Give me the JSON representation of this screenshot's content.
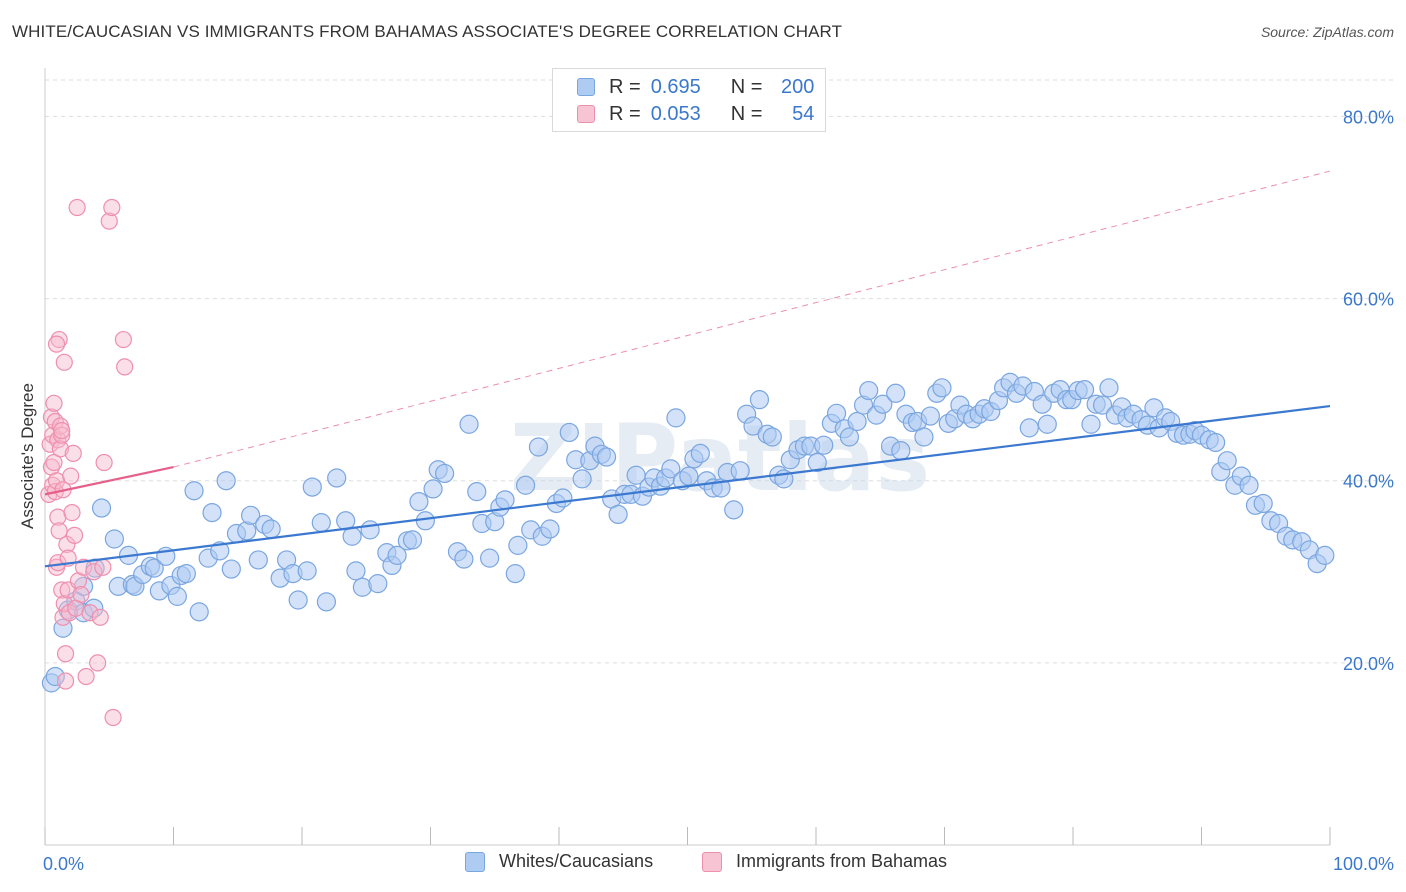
{
  "title": "WHITE/CAUCASIAN VS IMMIGRANTS FROM BAHAMAS ASSOCIATE'S DEGREE CORRELATION CHART",
  "source": "Source: ZipAtlas.com",
  "watermark": "ZIPatlas",
  "legend": {
    "rows": [
      {
        "r_label": "R =",
        "r_value": "0.695",
        "n_label": "N =",
        "n_value": "200"
      },
      {
        "r_label": "R =",
        "r_value": "0.053",
        "n_label": "N =",
        "n_value": "54"
      }
    ]
  },
  "bottom_legend": [
    {
      "label": "Whites/Caucasians"
    },
    {
      "label": "Immigrants from Bahamas"
    }
  ],
  "colors": {
    "blue_fill": "#aecbf2",
    "blue_stroke": "#7aa6e0",
    "blue_line": "#3b78d0",
    "pink_fill": "#f7b7cb",
    "pink_stroke": "#ee8fae",
    "pink_line": "#e5608a",
    "tick_label": "#3b78cc",
    "grid": "#dddddd"
  },
  "chart_data": {
    "type": "scatter",
    "title": "WHITE/CAUCASIAN VS IMMIGRANTS FROM BAHAMAS ASSOCIATE'S DEGREE CORRELATION CHART",
    "xlabel": "",
    "ylabel": "Associate's Degree",
    "xlim": [
      0,
      100
    ],
    "ylim": [
      0,
      84
    ],
    "x_tick_labels": [
      "0.0%",
      "100.0%"
    ],
    "y_ticks": [
      20,
      40,
      60,
      80
    ],
    "y_tick_labels": [
      "20.0%",
      "40.0%",
      "60.0%",
      "80.0%"
    ],
    "grid": true,
    "legend_position": "top-center",
    "series": [
      {
        "name": "Whites/Caucasians",
        "R": 0.695,
        "N": 200,
        "trend": {
          "x": [
            0,
            100
          ],
          "y": [
            30.6,
            48.2
          ],
          "style": "solid"
        },
        "points": [
          [
            0.5,
            17.8
          ],
          [
            0.8,
            18.5
          ],
          [
            1.4,
            23.8
          ],
          [
            1.8,
            25.8
          ],
          [
            2.4,
            26.8
          ],
          [
            3.0,
            25.5
          ],
          [
            3.0,
            28.4
          ],
          [
            3.8,
            26.0
          ],
          [
            3.9,
            30.4
          ],
          [
            4.4,
            37.0
          ],
          [
            5.4,
            33.6
          ],
          [
            5.7,
            28.4
          ],
          [
            6.5,
            31.8
          ],
          [
            6.8,
            28.6
          ],
          [
            7.0,
            28.4
          ],
          [
            7.6,
            29.7
          ],
          [
            8.2,
            30.6
          ],
          [
            8.5,
            30.4
          ],
          [
            8.9,
            27.9
          ],
          [
            9.4,
            31.7
          ],
          [
            9.8,
            28.5
          ],
          [
            10.3,
            27.3
          ],
          [
            10.6,
            29.6
          ],
          [
            11.0,
            29.8
          ],
          [
            11.6,
            38.9
          ],
          [
            12.0,
            25.6
          ],
          [
            12.7,
            31.5
          ],
          [
            13.0,
            36.5
          ],
          [
            13.6,
            32.3
          ],
          [
            14.1,
            40.0
          ],
          [
            14.5,
            30.3
          ],
          [
            14.9,
            34.2
          ],
          [
            15.7,
            34.5
          ],
          [
            16.0,
            36.2
          ],
          [
            16.6,
            31.3
          ],
          [
            17.1,
            35.2
          ],
          [
            17.6,
            34.7
          ],
          [
            18.3,
            29.3
          ],
          [
            18.8,
            31.3
          ],
          [
            19.3,
            29.8
          ],
          [
            19.7,
            26.9
          ],
          [
            20.4,
            30.1
          ],
          [
            20.8,
            39.3
          ],
          [
            21.5,
            35.4
          ],
          [
            21.9,
            26.7
          ],
          [
            22.7,
            40.3
          ],
          [
            23.4,
            35.6
          ],
          [
            23.9,
            33.9
          ],
          [
            24.2,
            30.1
          ],
          [
            24.7,
            28.3
          ],
          [
            25.3,
            34.6
          ],
          [
            25.9,
            28.7
          ],
          [
            26.6,
            32.1
          ],
          [
            27.0,
            30.7
          ],
          [
            27.4,
            31.8
          ],
          [
            28.2,
            33.4
          ],
          [
            28.6,
            33.5
          ],
          [
            29.1,
            37.7
          ],
          [
            29.6,
            35.6
          ],
          [
            30.2,
            39.1
          ],
          [
            30.6,
            41.2
          ],
          [
            31.1,
            40.8
          ],
          [
            32.1,
            32.2
          ],
          [
            32.6,
            31.4
          ],
          [
            33.0,
            46.2
          ],
          [
            33.6,
            38.8
          ],
          [
            34.0,
            35.3
          ],
          [
            34.6,
            31.5
          ],
          [
            35.0,
            35.5
          ],
          [
            35.4,
            37.1
          ],
          [
            35.8,
            37.9
          ],
          [
            36.6,
            29.8
          ],
          [
            36.8,
            32.9
          ],
          [
            37.4,
            39.5
          ],
          [
            37.8,
            34.6
          ],
          [
            38.4,
            43.7
          ],
          [
            38.7,
            33.9
          ],
          [
            39.3,
            34.7
          ],
          [
            39.8,
            37.5
          ],
          [
            40.3,
            38.1
          ],
          [
            40.8,
            45.3
          ],
          [
            41.3,
            42.3
          ],
          [
            41.8,
            40.2
          ],
          [
            42.4,
            42.2
          ],
          [
            42.8,
            43.8
          ],
          [
            43.3,
            42.9
          ],
          [
            43.7,
            42.6
          ],
          [
            44.1,
            38.0
          ],
          [
            44.6,
            36.3
          ],
          [
            45.1,
            38.5
          ],
          [
            45.6,
            38.5
          ],
          [
            46.0,
            40.6
          ],
          [
            46.5,
            38.3
          ],
          [
            47.0,
            39.3
          ],
          [
            47.4,
            40.3
          ],
          [
            47.9,
            39.4
          ],
          [
            48.3,
            40.3
          ],
          [
            48.7,
            41.3
          ],
          [
            49.1,
            46.9
          ],
          [
            49.6,
            40.0
          ],
          [
            50.1,
            40.5
          ],
          [
            50.5,
            42.4
          ],
          [
            51.0,
            43.0
          ],
          [
            51.5,
            40.0
          ],
          [
            52.0,
            39.2
          ],
          [
            52.6,
            39.2
          ],
          [
            53.1,
            40.9
          ],
          [
            53.6,
            36.8
          ],
          [
            54.1,
            41.1
          ],
          [
            54.6,
            47.3
          ],
          [
            55.1,
            46.0
          ],
          [
            55.6,
            48.9
          ],
          [
            56.2,
            45.1
          ],
          [
            56.6,
            44.8
          ],
          [
            57.1,
            40.6
          ],
          [
            57.5,
            40.2
          ],
          [
            58.0,
            42.3
          ],
          [
            58.6,
            43.4
          ],
          [
            59.1,
            43.8
          ],
          [
            59.6,
            43.8
          ],
          [
            60.1,
            42.0
          ],
          [
            60.6,
            43.9
          ],
          [
            61.2,
            46.3
          ],
          [
            61.6,
            47.4
          ],
          [
            62.2,
            45.7
          ],
          [
            62.6,
            44.8
          ],
          [
            63.2,
            46.5
          ],
          [
            63.7,
            48.3
          ],
          [
            64.1,
            49.9
          ],
          [
            64.7,
            47.2
          ],
          [
            65.2,
            48.4
          ],
          [
            65.8,
            43.8
          ],
          [
            66.2,
            49.6
          ],
          [
            66.6,
            43.3
          ],
          [
            67.0,
            47.3
          ],
          [
            67.5,
            46.4
          ],
          [
            67.9,
            46.5
          ],
          [
            68.4,
            44.8
          ],
          [
            68.9,
            47.1
          ],
          [
            69.4,
            49.6
          ],
          [
            69.8,
            50.2
          ],
          [
            70.3,
            46.3
          ],
          [
            70.8,
            46.8
          ],
          [
            71.2,
            48.3
          ],
          [
            71.7,
            47.3
          ],
          [
            72.2,
            46.8
          ],
          [
            72.7,
            47.3
          ],
          [
            73.1,
            47.9
          ],
          [
            73.6,
            47.6
          ],
          [
            74.2,
            48.8
          ],
          [
            74.6,
            50.2
          ],
          [
            75.1,
            50.8
          ],
          [
            75.6,
            49.6
          ],
          [
            76.1,
            50.4
          ],
          [
            76.6,
            45.8
          ],
          [
            77.0,
            49.8
          ],
          [
            77.6,
            48.4
          ],
          [
            78.0,
            46.2
          ],
          [
            78.5,
            49.6
          ],
          [
            79.0,
            50.0
          ],
          [
            79.5,
            48.9
          ],
          [
            79.9,
            48.9
          ],
          [
            80.4,
            49.9
          ],
          [
            80.9,
            50.0
          ],
          [
            81.4,
            46.2
          ],
          [
            81.8,
            48.4
          ],
          [
            82.3,
            48.3
          ],
          [
            82.8,
            50.2
          ],
          [
            83.3,
            47.2
          ],
          [
            83.8,
            48.1
          ],
          [
            84.2,
            46.9
          ],
          [
            84.7,
            47.3
          ],
          [
            85.3,
            46.7
          ],
          [
            85.8,
            46.1
          ],
          [
            86.3,
            48.0
          ],
          [
            86.7,
            45.8
          ],
          [
            87.2,
            46.9
          ],
          [
            87.6,
            46.5
          ],
          [
            88.1,
            45.2
          ],
          [
            88.6,
            45.0
          ],
          [
            89.1,
            45.1
          ],
          [
            89.5,
            45.5
          ],
          [
            90.0,
            45.0
          ],
          [
            90.6,
            44.5
          ],
          [
            91.1,
            44.2
          ],
          [
            91.5,
            41.0
          ],
          [
            92.0,
            42.2
          ],
          [
            92.6,
            39.5
          ],
          [
            93.1,
            40.5
          ],
          [
            93.7,
            39.5
          ],
          [
            94.2,
            37.3
          ],
          [
            94.8,
            37.5
          ],
          [
            95.4,
            35.6
          ],
          [
            96.0,
            35.3
          ],
          [
            96.6,
            33.9
          ],
          [
            97.1,
            33.5
          ],
          [
            97.8,
            33.3
          ],
          [
            98.4,
            32.4
          ],
          [
            99.0,
            30.9
          ],
          [
            99.6,
            31.8
          ]
        ]
      },
      {
        "name": "Immigrants from Bahamas",
        "R": 0.053,
        "N": 54,
        "trend": {
          "x": [
            0,
            10
          ],
          "y": [
            38.5,
            41.5
          ],
          "style": "solid"
        },
        "trend_extension": {
          "x": [
            10,
            100
          ],
          "y": [
            41.5,
            74
          ],
          "style": "dashed"
        },
        "points": [
          [
            0.3,
            38.5
          ],
          [
            0.4,
            44.0
          ],
          [
            0.5,
            47.0
          ],
          [
            0.5,
            41.5
          ],
          [
            0.6,
            39.5
          ],
          [
            0.6,
            45.0
          ],
          [
            0.7,
            42.0
          ],
          [
            0.7,
            48.5
          ],
          [
            0.8,
            46.5
          ],
          [
            0.8,
            38.8
          ],
          [
            0.9,
            30.5
          ],
          [
            0.9,
            40.0
          ],
          [
            1.0,
            36.0
          ],
          [
            1.0,
            44.5
          ],
          [
            1.0,
            31.0
          ],
          [
            1.1,
            55.5
          ],
          [
            1.1,
            34.5
          ],
          [
            1.2,
            46.0
          ],
          [
            1.2,
            43.5
          ],
          [
            1.3,
            28.0
          ],
          [
            1.3,
            45.0
          ],
          [
            1.4,
            39.0
          ],
          [
            1.4,
            25.0
          ],
          [
            1.5,
            26.5
          ],
          [
            1.5,
            53.0
          ],
          [
            1.6,
            21.0
          ],
          [
            1.6,
            18.0
          ],
          [
            1.7,
            33.0
          ],
          [
            1.8,
            28.0
          ],
          [
            1.8,
            31.5
          ],
          [
            1.9,
            25.5
          ],
          [
            2.0,
            40.5
          ],
          [
            2.1,
            36.5
          ],
          [
            2.2,
            43.0
          ],
          [
            2.3,
            34.0
          ],
          [
            2.4,
            26.0
          ],
          [
            2.5,
            70.0
          ],
          [
            2.6,
            29.0
          ],
          [
            2.8,
            27.5
          ],
          [
            3.0,
            30.5
          ],
          [
            3.2,
            18.5
          ],
          [
            3.5,
            25.5
          ],
          [
            3.8,
            30.0
          ],
          [
            4.1,
            20.0
          ],
          [
            4.3,
            25.0
          ],
          [
            4.5,
            30.5
          ],
          [
            4.6,
            42.0
          ],
          [
            5.0,
            68.5
          ],
          [
            5.2,
            70.0
          ],
          [
            5.3,
            14.0
          ],
          [
            6.1,
            55.5
          ],
          [
            6.2,
            52.5
          ],
          [
            1.3,
            45.5
          ],
          [
            0.9,
            55.0
          ]
        ]
      }
    ]
  }
}
